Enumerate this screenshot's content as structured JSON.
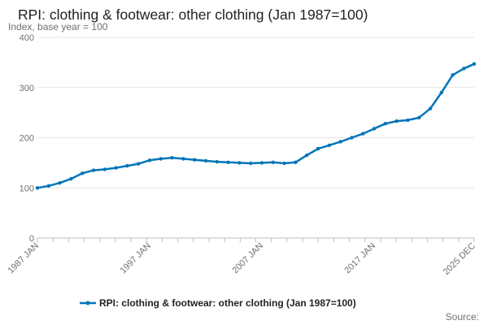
{
  "chart_data": {
    "type": "line",
    "title": "RPI: clothing & footwear: other clothing (Jan 1987=100)",
    "subtitle": "Index, base year = 100",
    "ylim": [
      0,
      400
    ],
    "y_ticks": [
      "0",
      "100",
      "200",
      "300",
      "400"
    ],
    "x_ticks": [
      "1987 JAN",
      "1997 JAN",
      "2007 JAN",
      "2017 JAN",
      "2025 DEC"
    ],
    "grid": true,
    "legend_position": "bottom",
    "series": [
      {
        "name": "RPI: clothing & footwear: other clothing (Jan 1987=100)",
        "color": "#0075b8",
        "points": [
          {
            "x": "1987-01",
            "y": 100
          },
          {
            "x": "1988-01",
            "y": 104
          },
          {
            "x": "1989-01",
            "y": 110
          },
          {
            "x": "1990-01",
            "y": 118
          },
          {
            "x": "1991-01",
            "y": 129
          },
          {
            "x": "1992-01",
            "y": 135
          },
          {
            "x": "1993-01",
            "y": 137
          },
          {
            "x": "1994-01",
            "y": 140
          },
          {
            "x": "1995-01",
            "y": 144
          },
          {
            "x": "1996-01",
            "y": 148
          },
          {
            "x": "1997-01",
            "y": 155
          },
          {
            "x": "1998-01",
            "y": 158
          },
          {
            "x": "1999-01",
            "y": 160
          },
          {
            "x": "2000-01",
            "y": 158
          },
          {
            "x": "2001-01",
            "y": 156
          },
          {
            "x": "2002-01",
            "y": 154
          },
          {
            "x": "2003-01",
            "y": 152
          },
          {
            "x": "2004-01",
            "y": 151
          },
          {
            "x": "2005-01",
            "y": 150
          },
          {
            "x": "2006-01",
            "y": 149
          },
          {
            "x": "2007-01",
            "y": 150
          },
          {
            "x": "2008-01",
            "y": 151
          },
          {
            "x": "2009-01",
            "y": 149
          },
          {
            "x": "2010-01",
            "y": 151
          },
          {
            "x": "2011-01",
            "y": 165
          },
          {
            "x": "2012-01",
            "y": 178
          },
          {
            "x": "2013-01",
            "y": 185
          },
          {
            "x": "2014-01",
            "y": 192
          },
          {
            "x": "2015-01",
            "y": 200
          },
          {
            "x": "2016-01",
            "y": 208
          },
          {
            "x": "2017-01",
            "y": 218
          },
          {
            "x": "2018-01",
            "y": 228
          },
          {
            "x": "2019-01",
            "y": 233
          },
          {
            "x": "2020-01",
            "y": 235
          },
          {
            "x": "2021-01",
            "y": 240
          },
          {
            "x": "2022-01",
            "y": 258
          },
          {
            "x": "2023-01",
            "y": 290
          },
          {
            "x": "2024-01",
            "y": 325
          },
          {
            "x": "2025-01",
            "y": 338
          },
          {
            "x": "2025-12",
            "y": 347
          }
        ]
      }
    ]
  },
  "legend": {
    "label": "RPI: clothing & footwear: other clothing (Jan 1987=100)"
  },
  "footer": {
    "source_label": "Source:"
  }
}
